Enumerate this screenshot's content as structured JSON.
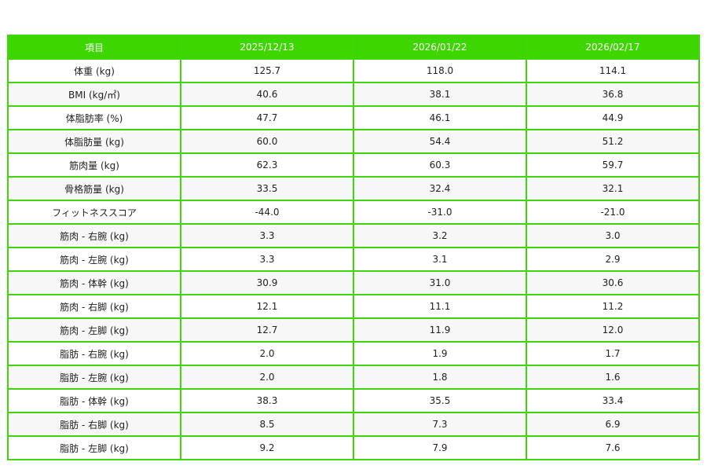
{
  "table": {
    "headers": [
      "項目",
      "2025/12/13",
      "2026/01/22",
      "2026/02/17"
    ],
    "rows": [
      [
        "体重 (kg)",
        "125.7",
        "118.0",
        "114.1"
      ],
      [
        "BMI (kg/㎡)",
        "40.6",
        "38.1",
        "36.8"
      ],
      [
        "体脂肪率 (%)",
        "47.7",
        "46.1",
        "44.9"
      ],
      [
        "体脂肪量 (kg)",
        "60.0",
        "54.4",
        "51.2"
      ],
      [
        "筋肉量 (kg)",
        "62.3",
        "60.3",
        "59.7"
      ],
      [
        "骨格筋量 (kg)",
        "33.5",
        "32.4",
        "32.1"
      ],
      [
        "フィットネススコア",
        "-44.0",
        "-31.0",
        "-21.0"
      ],
      [
        "筋肉 - 右腕 (kg)",
        "3.3",
        "3.2",
        "3.0"
      ],
      [
        "筋肉 - 左腕 (kg)",
        "3.3",
        "3.1",
        "2.9"
      ],
      [
        "筋肉 - 体幹 (kg)",
        "30.9",
        "31.0",
        "30.6"
      ],
      [
        "筋肉 - 右脚 (kg)",
        "12.1",
        "11.1",
        "11.2"
      ],
      [
        "筋肉 - 左脚 (kg)",
        "12.7",
        "11.9",
        "12.0"
      ],
      [
        "脂肪 - 右腕 (kg)",
        "2.0",
        "1.9",
        "1.7"
      ],
      [
        "脂肪 - 左腕 (kg)",
        "2.0",
        "1.8",
        "1.6"
      ],
      [
        "脂肪 - 体幹 (kg)",
        "38.3",
        "35.5",
        "33.4"
      ],
      [
        "脂肪 - 右脚 (kg)",
        "8.5",
        "7.3",
        "6.9"
      ],
      [
        "脂肪 - 左脚 (kg)",
        "9.2",
        "7.9",
        "7.6"
      ]
    ]
  },
  "colors": {
    "header_bg": "#3dd600",
    "border": "#3fd60a",
    "alt_row": "#f7f7f7"
  }
}
